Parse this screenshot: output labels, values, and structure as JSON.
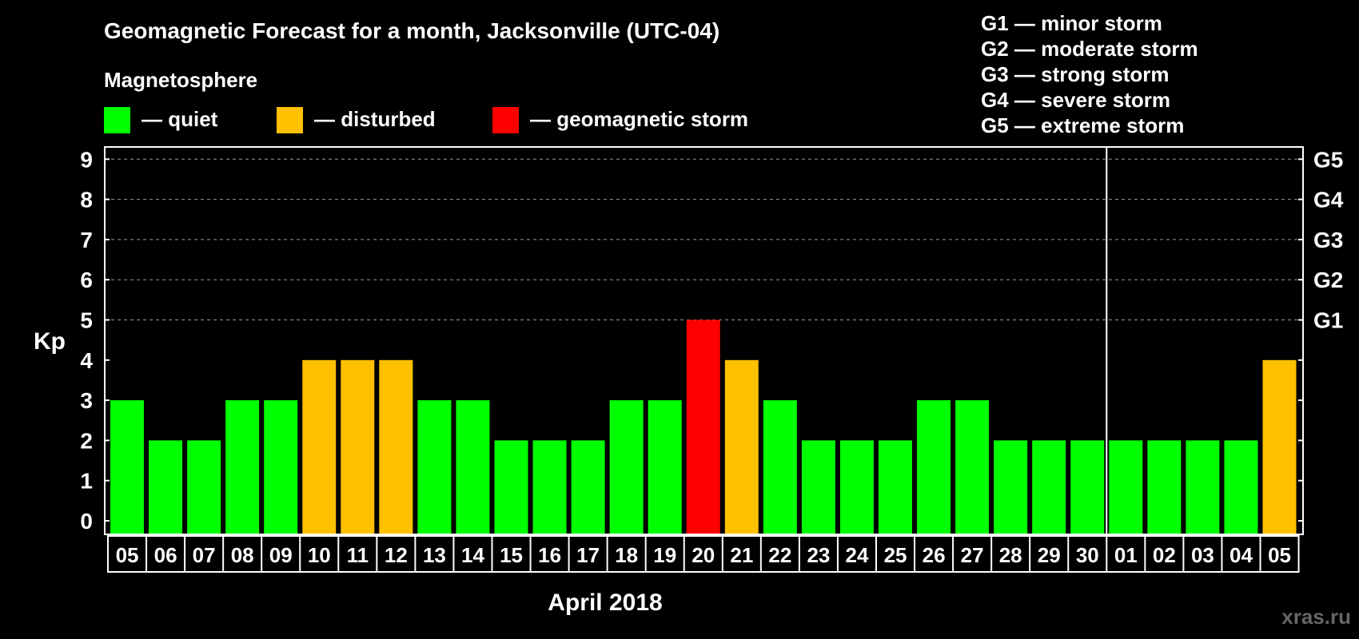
{
  "chart_data": {
    "type": "bar",
    "title": "Geomagnetic Forecast for a month, Jacksonville (UTC-04)",
    "section_label": "Magnetosphere",
    "legend": [
      {
        "label": "— quiet",
        "color": "#00ff00"
      },
      {
        "label": "— disturbed",
        "color": "#ffc000"
      },
      {
        "label": "— geomagnetic storm",
        "color": "#ff0000"
      }
    ],
    "storm_scale": [
      "G1 — minor storm",
      "G2 — moderate storm",
      "G3 — strong storm",
      "G4 — severe storm",
      "G5 — extreme storm"
    ],
    "ylabel": "Kp",
    "xlabel": "April 2018",
    "ylim": [
      0,
      9
    ],
    "yticks": [
      0,
      1,
      2,
      3,
      4,
      5,
      6,
      7,
      8,
      9
    ],
    "right_axis_labels": [
      {
        "kp": 5,
        "label": "G1"
      },
      {
        "kp": 6,
        "label": "G2"
      },
      {
        "kp": 7,
        "label": "G3"
      },
      {
        "kp": 8,
        "label": "G4"
      },
      {
        "kp": 9,
        "label": "G5"
      }
    ],
    "categories": [
      "05",
      "06",
      "07",
      "08",
      "09",
      "10",
      "11",
      "12",
      "13",
      "14",
      "15",
      "16",
      "17",
      "18",
      "19",
      "20",
      "21",
      "22",
      "23",
      "24",
      "25",
      "26",
      "27",
      "28",
      "29",
      "30",
      "01",
      "02",
      "03",
      "04",
      "05"
    ],
    "values": [
      3,
      2,
      2,
      3,
      3,
      4,
      4,
      4,
      3,
      3,
      2,
      2,
      2,
      3,
      3,
      5,
      4,
      3,
      2,
      2,
      2,
      3,
      3,
      2,
      2,
      2,
      2,
      2,
      2,
      2,
      4
    ],
    "month_divider_after": "30",
    "colors": {
      "quiet": "#00ff00",
      "disturbed": "#ffc000",
      "storm": "#ff0000"
    }
  },
  "watermark": "xras.ru"
}
